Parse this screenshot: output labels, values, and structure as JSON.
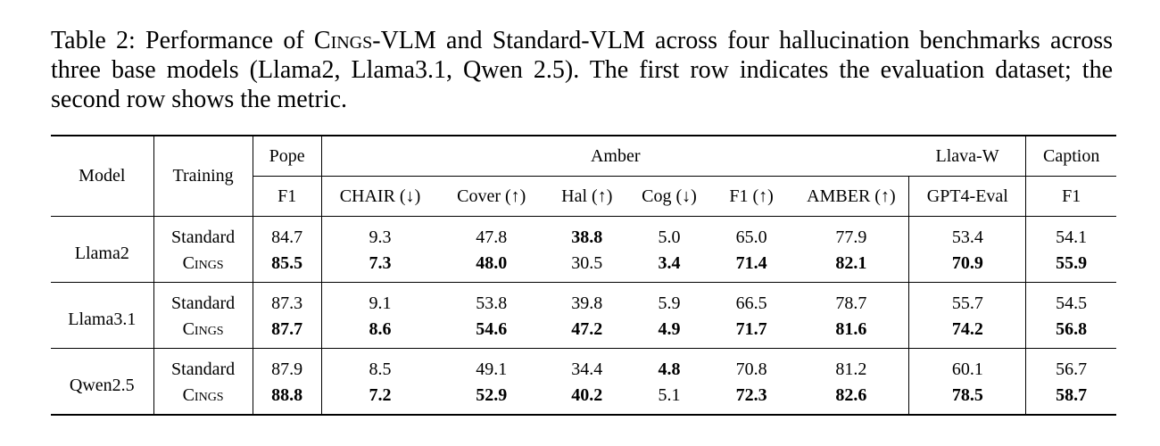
{
  "caption": {
    "label": "Table 2:",
    "text_a": " Performance of ",
    "name_c": "C",
    "name_ings": "ings",
    "text_b": "-VLM and Standard-VLM across four hallucination benchmarks across three base models (Llama2, Llama3.1, Qwen 2.5).  The first row indicates the evaluation dataset; the second row shows the metric."
  },
  "header": {
    "model": "Model",
    "training": "Training",
    "datasets": [
      "Pope",
      "Amber",
      "Llava-W",
      "Caption"
    ],
    "metrics": [
      "F1",
      "CHAIR (↓)",
      "Cover (↑)",
      "Hal (↑)",
      "Cog (↓)",
      "F1 (↑)",
      "AMBER (↑)",
      "GPT4-Eval",
      "F1"
    ]
  },
  "rows": [
    {
      "model": "Llama2",
      "standard": {
        "label": "Standard",
        "values": [
          "84.7",
          "9.3",
          "47.8",
          "38.8",
          "5.0",
          "65.0",
          "77.9",
          "53.4",
          "54.1"
        ]
      },
      "cings": {
        "label_c": "C",
        "label_ings": "ings",
        "values": [
          "85.5",
          "7.3",
          "48.0",
          "30.5",
          "3.4",
          "71.4",
          "82.1",
          "70.9",
          "55.9"
        ]
      }
    },
    {
      "model": "Llama3.1",
      "standard": {
        "label": "Standard",
        "values": [
          "87.3",
          "9.1",
          "53.8",
          "39.8",
          "5.9",
          "66.5",
          "78.7",
          "55.7",
          "54.5"
        ]
      },
      "cings": {
        "label_c": "C",
        "label_ings": "ings",
        "values": [
          "87.7",
          "8.6",
          "54.6",
          "47.2",
          "4.9",
          "71.7",
          "81.6",
          "74.2",
          "56.8"
        ]
      }
    },
    {
      "model": "Qwen2.5",
      "standard": {
        "label": "Standard",
        "values": [
          "87.9",
          "8.5",
          "49.1",
          "34.4",
          "4.8",
          "70.8",
          "81.2",
          "60.1",
          "56.7"
        ]
      },
      "cings": {
        "label_c": "C",
        "label_ings": "ings",
        "values": [
          "88.8",
          "7.2",
          "52.9",
          "40.2",
          "5.1",
          "72.3",
          "82.6",
          "78.5",
          "58.7"
        ]
      }
    }
  ]
}
